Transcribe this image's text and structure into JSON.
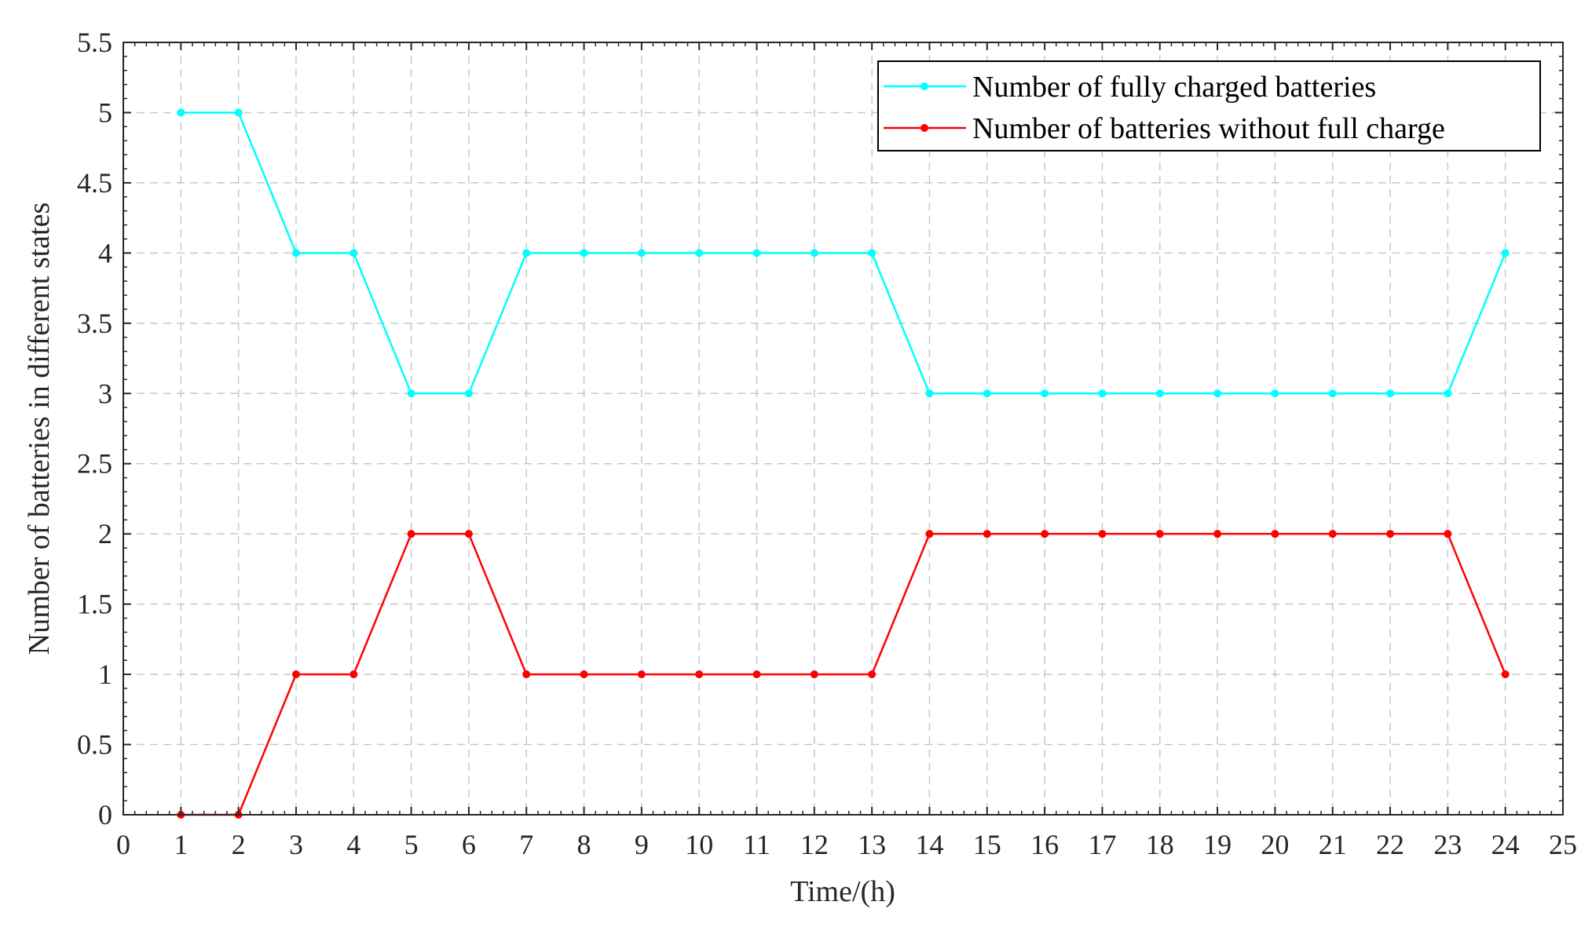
{
  "chart_data": {
    "type": "line",
    "title": "",
    "xlabel": "Time/(h)",
    "ylabel": "Number of batteries in different states",
    "xlim": [
      0,
      25
    ],
    "ylim": [
      0,
      5.5
    ],
    "xticks": [
      "0",
      "1",
      "2",
      "3",
      "4",
      "5",
      "6",
      "7",
      "8",
      "9",
      "10",
      "11",
      "12",
      "13",
      "14",
      "15",
      "16",
      "17",
      "18",
      "19",
      "20",
      "21",
      "22",
      "23",
      "24",
      "25"
    ],
    "yticks": [
      "0",
      "0.5",
      "1",
      "1.5",
      "2",
      "2.5",
      "3",
      "3.5",
      "4",
      "4.5",
      "5",
      "5.5"
    ],
    "grid": true,
    "legend_position": "top-right",
    "x": [
      1,
      2,
      3,
      4,
      5,
      6,
      7,
      8,
      9,
      10,
      11,
      12,
      13,
      14,
      15,
      16,
      17,
      18,
      19,
      20,
      21,
      22,
      23,
      24
    ],
    "series": [
      {
        "name": "Number of fully charged batteries",
        "color": "#00ffff",
        "values": [
          5,
          5,
          4,
          4,
          3,
          3,
          4,
          4,
          4,
          4,
          4,
          4,
          4,
          3,
          3,
          3,
          3,
          3,
          3,
          3,
          3,
          3,
          3,
          4
        ]
      },
      {
        "name": "Number of batteries without full charge",
        "color": "#ff0000",
        "values": [
          0,
          0,
          1,
          1,
          2,
          2,
          1,
          1,
          1,
          1,
          1,
          1,
          1,
          2,
          2,
          2,
          2,
          2,
          2,
          2,
          2,
          2,
          2,
          1
        ]
      }
    ]
  }
}
